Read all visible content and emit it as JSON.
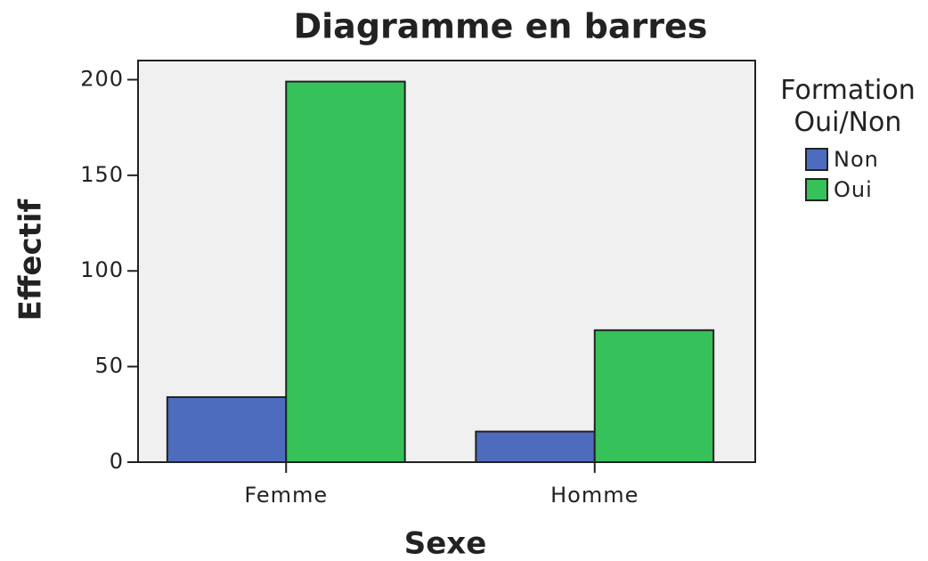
{
  "chart_data": {
    "type": "bar",
    "title": "Diagramme en barres",
    "x_label": "Sexe",
    "y_label": "Effectif",
    "categories": [
      "Femme",
      "Homme"
    ],
    "legend_title": "Formation Oui/Non",
    "legend_position": "right",
    "series": [
      {
        "name": "Non",
        "color": "#4e6cbe",
        "values": [
          34,
          16
        ]
      },
      {
        "name": "Oui",
        "color": "#36c15a",
        "values": [
          199,
          69
        ]
      }
    ],
    "ylim": [
      0,
      210
    ],
    "yticks": [
      0,
      50,
      100,
      150,
      200
    ],
    "grid": false
  }
}
